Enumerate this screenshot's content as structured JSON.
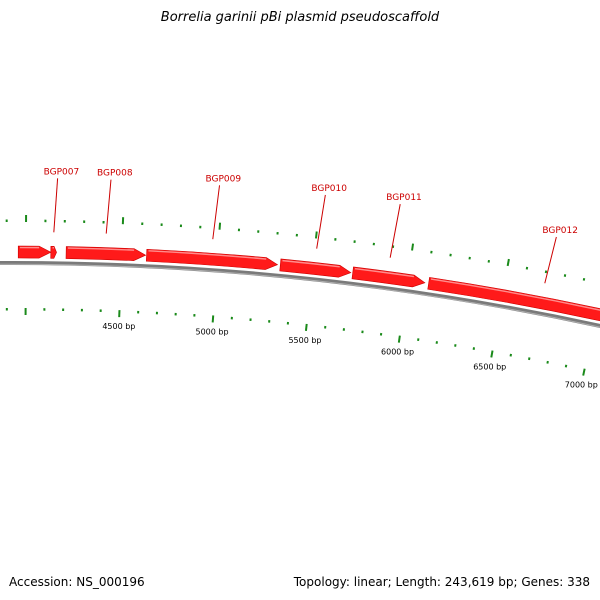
{
  "title": "Borrelia garinii pBi plasmid pseudoscaffold",
  "footer": {
    "accession": "Accession: NS_000196",
    "summary": "Topology: linear; Length: 243,619 bp; Genes: 338"
  },
  "colors": {
    "gene": "#ff1a1a",
    "gene_label": "#cc0000",
    "tick": "#1a8a1a",
    "backbone": "#7a7a7a"
  },
  "genes": [
    {
      "label": "",
      "start": 3960,
      "end": 4130,
      "strand": "+"
    },
    {
      "label": "BGP007",
      "start": 4130,
      "end": 4160,
      "strand": "+"
    },
    {
      "label": "BGP008",
      "start": 4210,
      "end": 4625,
      "strand": "+"
    },
    {
      "label": "BGP009",
      "start": 4630,
      "end": 5315,
      "strand": "+"
    },
    {
      "label": "BGP010",
      "start": 5330,
      "end": 5700,
      "strand": "+"
    },
    {
      "label": "BGP011",
      "start": 5710,
      "end": 6090,
      "strand": "+"
    },
    {
      "label": "BGP012",
      "start": 6110,
      "end": 7320,
      "strand": "+"
    }
  ],
  "scale_labels": [
    "4500 bp",
    "5000 bp",
    "5500 bp",
    "6000 bp",
    "6500 bp",
    "7000 bp"
  ],
  "scale_values": [
    4500,
    5000,
    5500,
    6000,
    6500,
    7000
  ],
  "view": {
    "start_bp": 3990,
    "end_bp": 7300,
    "minor_tick_bp": 100,
    "major_tick_bp": 500
  }
}
